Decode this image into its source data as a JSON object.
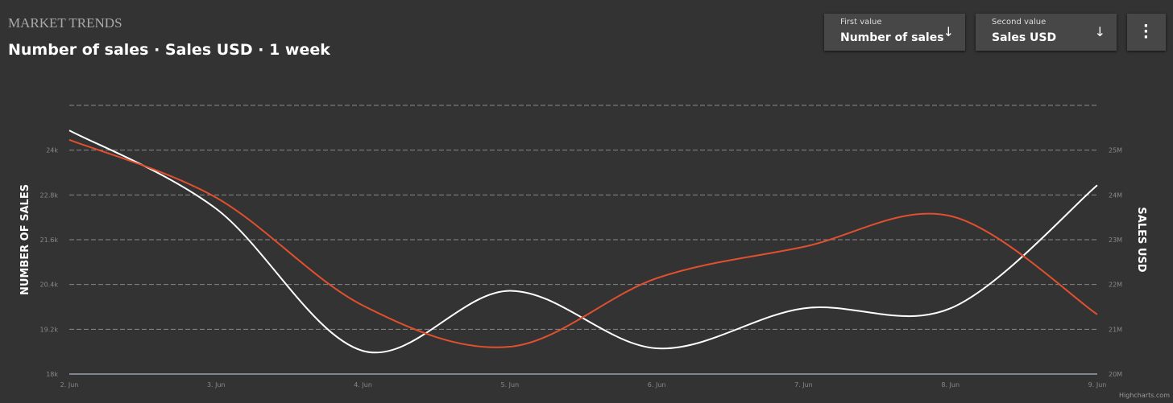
{
  "header": {
    "kicker": "MARKET TRENDS",
    "title": "Number of sales · Sales USD · 1 week"
  },
  "controls": {
    "first_label": "First value",
    "second_label": "Second value"
  },
  "chart_data": {
    "type": "line",
    "categories": [
      "2. Jun",
      "3. Jun",
      "4. Jun",
      "5. Jun",
      "6. Jun",
      "7. Jun",
      "8. Jun",
      "9. Jun"
    ],
    "y_label": "NUMBER OF SALES",
    "y2_label": "SALES USD",
    "ylim": [
      18000,
      25200
    ],
    "yticks": [
      {
        "value": 18000,
        "label": "18k"
      },
      {
        "value": 19200,
        "label": "19.2k"
      },
      {
        "value": 20400,
        "label": "20.4k"
      },
      {
        "value": 21600,
        "label": "21.6k"
      },
      {
        "value": 22800,
        "label": "22.8k"
      },
      {
        "value": 24000,
        "label": "24k"
      }
    ],
    "y2lim": [
      20000000,
      26000000
    ],
    "y2ticks": [
      {
        "value": 20000000,
        "label": "20M"
      },
      {
        "value": 21000000,
        "label": "21M"
      },
      {
        "value": 22000000,
        "label": "22M"
      },
      {
        "value": 23000000,
        "label": "23M"
      },
      {
        "value": 24000000,
        "label": "24M"
      },
      {
        "value": 25000000,
        "label": "25M"
      }
    ],
    "grid": true,
    "series": [
      {
        "name": "Number of sales",
        "color": "#ffffff",
        "values": [
          24530,
          22430,
          18620,
          20230,
          18690,
          19760,
          19760,
          23060
        ]
      },
      {
        "name": "Sales USD",
        "color": "#e0502f",
        "axis": "y2",
        "values": [
          25230000,
          23940000,
          21530000,
          20610000,
          22140000,
          22840000,
          23530000,
          21330000
        ]
      }
    ],
    "credits": "Highcharts.com"
  }
}
